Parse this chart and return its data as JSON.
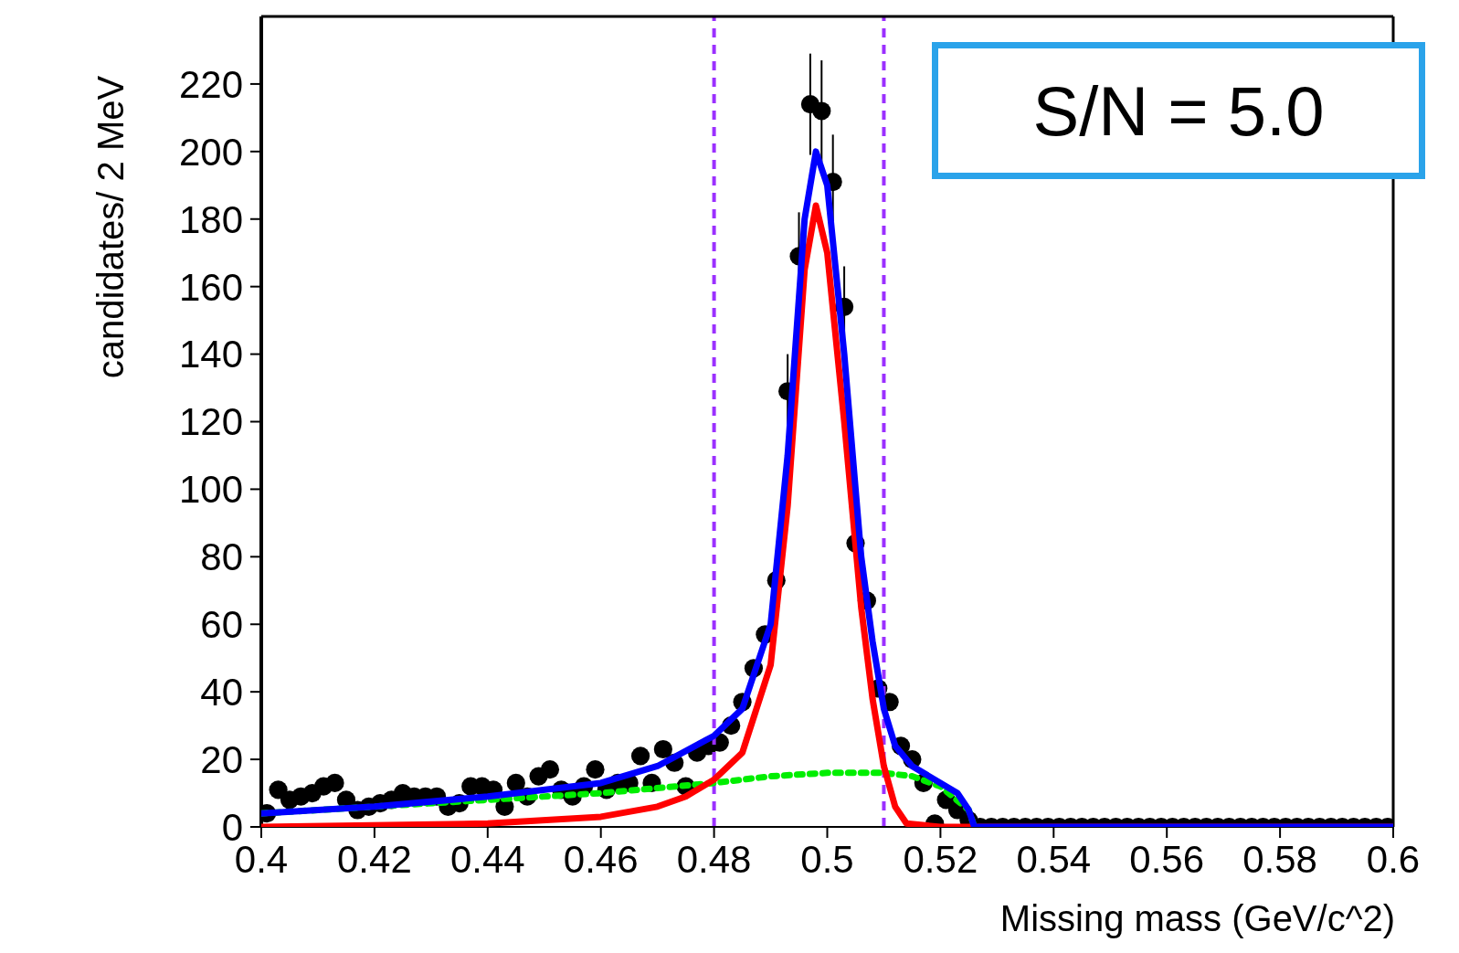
{
  "chart_data": {
    "type": "scatter",
    "xlabel": "Missing mass (GeV/c^2)",
    "ylabel": "candidates/ 2 MeV",
    "xlim": [
      0.4,
      0.6
    ],
    "ylim": [
      0,
      240
    ],
    "xticks": [
      0.4,
      0.42,
      0.44,
      0.46,
      0.48,
      0.5,
      0.52,
      0.54,
      0.56,
      0.58,
      0.6
    ],
    "yticks": [
      0,
      20,
      40,
      60,
      80,
      100,
      120,
      140,
      160,
      180,
      200,
      220
    ],
    "marker": "circle",
    "legend": false,
    "annotations": [
      "S/N = 5.0"
    ],
    "ref_lines": [
      {
        "axis": "x",
        "value": 0.48,
        "color": "#9b30ff",
        "line_style": "dashed"
      },
      {
        "axis": "x",
        "value": 0.51,
        "color": "#9b30ff",
        "line_style": "dashed"
      }
    ],
    "series": [
      {
        "type": "scatter",
        "color": "#000000",
        "x": [
          0.401,
          0.403,
          0.405,
          0.407,
          0.409,
          0.411,
          0.413,
          0.415,
          0.417,
          0.419,
          0.421,
          0.423,
          0.425,
          0.427,
          0.429,
          0.431,
          0.433,
          0.435,
          0.437,
          0.439,
          0.441,
          0.443,
          0.445,
          0.447,
          0.449,
          0.451,
          0.453,
          0.455,
          0.457,
          0.459,
          0.461,
          0.463,
          0.465,
          0.467,
          0.469,
          0.471,
          0.473,
          0.475,
          0.477,
          0.479,
          0.481,
          0.483,
          0.485,
          0.487,
          0.489,
          0.491,
          0.493,
          0.495,
          0.497,
          0.499,
          0.501,
          0.503,
          0.505,
          0.507,
          0.509,
          0.511,
          0.513,
          0.515,
          0.517,
          0.519,
          0.521,
          0.523,
          0.525,
          0.527,
          0.529,
          0.531,
          0.533,
          0.535,
          0.537,
          0.539,
          0.541,
          0.543,
          0.545,
          0.547,
          0.549,
          0.551,
          0.553,
          0.555,
          0.557,
          0.559,
          0.561,
          0.563,
          0.565,
          0.567,
          0.569,
          0.571,
          0.573,
          0.575,
          0.577,
          0.579,
          0.581,
          0.583,
          0.585,
          0.587,
          0.589,
          0.591,
          0.593,
          0.595,
          0.597,
          0.599
        ],
        "values": [
          4,
          11,
          8,
          9,
          10,
          12,
          13,
          8,
          5,
          6,
          7,
          8,
          10,
          9,
          9,
          9,
          6,
          7,
          12,
          12,
          11,
          6,
          13,
          9,
          15,
          17,
          11,
          9,
          12,
          17,
          11,
          13,
          13,
          21,
          13,
          23,
          19,
          12,
          22,
          24,
          25,
          30,
          37,
          47,
          57,
          73,
          129,
          169,
          214,
          212,
          191,
          154,
          84,
          67,
          41,
          37,
          24,
          20,
          13,
          1,
          8,
          5,
          2,
          0,
          0,
          0,
          0,
          0,
          0,
          0,
          0,
          0,
          0,
          0,
          0,
          0,
          0,
          0,
          0,
          0,
          0,
          0,
          0,
          0,
          0,
          0,
          0,
          0,
          0,
          0,
          0,
          0,
          0,
          0,
          0,
          0,
          0,
          0,
          0,
          0
        ],
        "errors": [
          null,
          null,
          null,
          null,
          null,
          null,
          null,
          null,
          null,
          null,
          null,
          null,
          null,
          null,
          null,
          null,
          null,
          null,
          null,
          null,
          null,
          null,
          null,
          null,
          null,
          null,
          null,
          null,
          null,
          null,
          null,
          null,
          null,
          null,
          null,
          null,
          null,
          null,
          null,
          null,
          null,
          null,
          null,
          null,
          null,
          null,
          11,
          13,
          15,
          15,
          14,
          12,
          null,
          null,
          null,
          null,
          null,
          null,
          null,
          null,
          null,
          null,
          null,
          null,
          null,
          null,
          null,
          null,
          null,
          null,
          null,
          null,
          null,
          null,
          null,
          null,
          null,
          null,
          null,
          null,
          null,
          null,
          null,
          null,
          null,
          null,
          null,
          null,
          null,
          null,
          null,
          null,
          null,
          null,
          null,
          null,
          null,
          null,
          null,
          null
        ]
      },
      {
        "type": "line",
        "marker": "none",
        "color": "#00ee00",
        "line_style": "dotted",
        "x": [
          0.4,
          0.42,
          0.44,
          0.46,
          0.48,
          0.49,
          0.5,
          0.51,
          0.515,
          0.52,
          0.525,
          0.526
        ],
        "values": [
          4,
          6,
          8,
          10,
          13,
          15,
          16,
          16,
          15,
          12,
          5,
          0
        ]
      },
      {
        "type": "line",
        "marker": "none",
        "color": "#ff0000",
        "line_style": "solid",
        "x": [
          0.4,
          0.44,
          0.46,
          0.47,
          0.475,
          0.48,
          0.485,
          0.49,
          0.493,
          0.496,
          0.498,
          0.5,
          0.503,
          0.506,
          0.508,
          0.51,
          0.512,
          0.514,
          0.52,
          0.6
        ],
        "values": [
          0,
          1,
          3,
          6,
          9,
          14,
          22,
          48,
          95,
          165,
          184,
          170,
          120,
          65,
          38,
          18,
          6,
          1,
          0,
          0
        ]
      },
      {
        "type": "line",
        "marker": "none",
        "color": "#0000ff",
        "line_style": "solid",
        "x": [
          0.4,
          0.42,
          0.44,
          0.46,
          0.47,
          0.48,
          0.485,
          0.49,
          0.493,
          0.496,
          0.498,
          0.5,
          0.503,
          0.506,
          0.508,
          0.51,
          0.512,
          0.515,
          0.52,
          0.523,
          0.525,
          0.526,
          0.6
        ],
        "values": [
          4,
          6,
          9,
          13,
          18,
          27,
          35,
          60,
          110,
          180,
          200,
          190,
          140,
          80,
          55,
          35,
          24,
          18,
          13,
          10,
          5,
          0,
          0
        ]
      }
    ]
  }
}
